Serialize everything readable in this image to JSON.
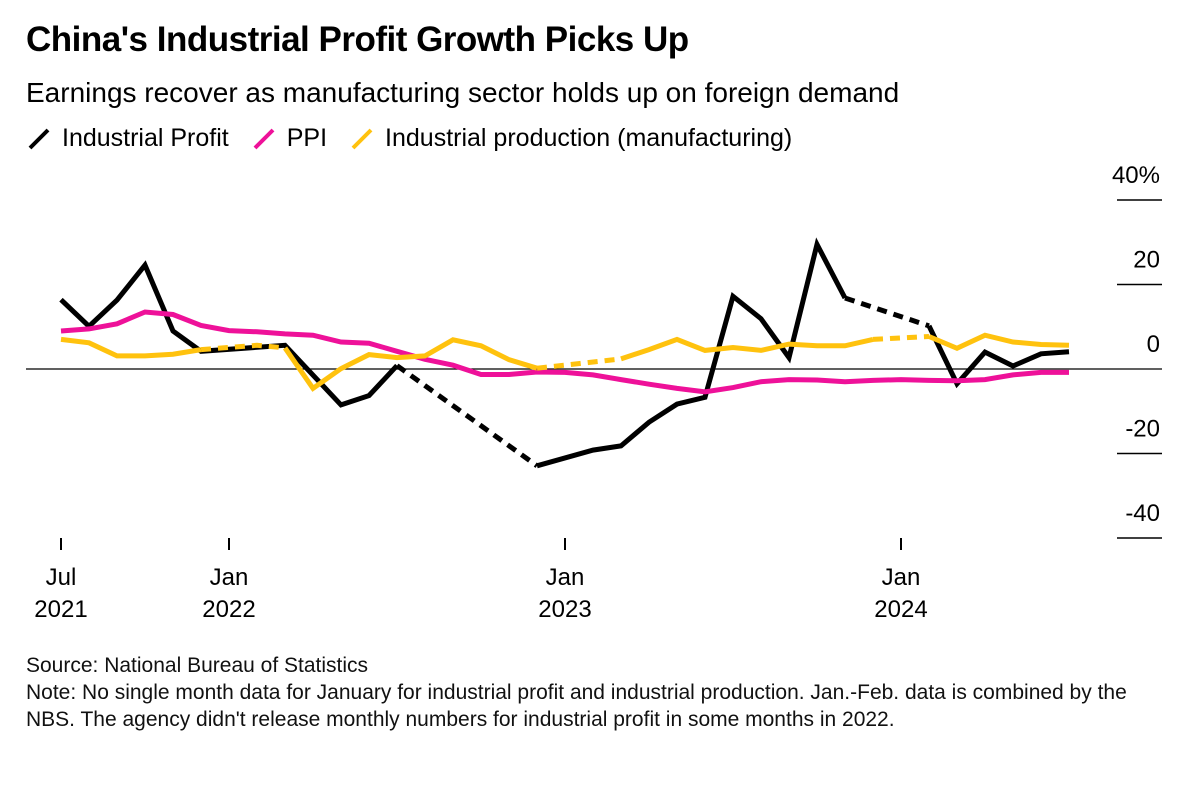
{
  "header": {
    "title": "China's Industrial Profit Growth Picks Up",
    "subtitle": "Earnings recover as manufacturing sector holds up on foreign demand"
  },
  "footer": {
    "source": "Source: National Bureau of Statistics",
    "note": "Note: No single month data for January for industrial profit and industrial production. Jan.-Feb. data is combined by the NBS. The agency didn't release monthly numbers for industrial profit in some months in 2022."
  },
  "chart_data": {
    "type": "line",
    "title": "China's Industrial Profit Growth Picks Up",
    "subtitle": "Earnings recover as manufacturing sector holds up on foreign demand",
    "ylim": [
      -40,
      40
    ],
    "y_ticks": [
      {
        "value": 40,
        "label": "40%"
      },
      {
        "value": 20,
        "label": "20"
      },
      {
        "value": 0,
        "label": "0"
      },
      {
        "value": -20,
        "label": "-20"
      },
      {
        "value": -40,
        "label": "-40"
      }
    ],
    "x_range": [
      "2021-07",
      "2024-08"
    ],
    "x_ticks": [
      {
        "date": "2021-07",
        "line1": "Jul",
        "line2": "2021"
      },
      {
        "date": "2022-01",
        "line1": "Jan",
        "line2": "2022"
      },
      {
        "date": "2023-01",
        "line1": "Jan",
        "line2": "2023"
      },
      {
        "date": "2024-01",
        "line1": "Jan",
        "line2": "2024"
      }
    ],
    "grid": false,
    "legend_position": "top-left",
    "series": [
      {
        "name": "Industrial Profit",
        "color": "#000000",
        "dashed_ranges": [
          [
            "2022-01",
            "2022-03"
          ],
          [
            "2022-07",
            "2022-12"
          ],
          [
            "2023-11",
            "2024-02"
          ]
        ],
        "points": [
          {
            "date": "2021-07",
            "value": 16.4
          },
          {
            "date": "2021-08",
            "value": 10.1
          },
          {
            "date": "2021-09",
            "value": 16.3
          },
          {
            "date": "2021-10",
            "value": 24.6
          },
          {
            "date": "2021-11",
            "value": 9.0
          },
          {
            "date": "2021-12",
            "value": 4.2
          },
          {
            "date": "2022-03",
            "value": 5.6
          },
          {
            "date": "2022-05",
            "value": -8.5
          },
          {
            "date": "2022-06",
            "value": -6.3
          },
          {
            "date": "2022-07",
            "value": 0.8
          },
          {
            "date": "2022-12",
            "value": -22.9
          },
          {
            "date": "2023-02",
            "value": -19.2
          },
          {
            "date": "2023-03",
            "value": -18.2
          },
          {
            "date": "2023-04",
            "value": -12.6
          },
          {
            "date": "2023-05",
            "value": -8.3
          },
          {
            "date": "2023-06",
            "value": -6.7
          },
          {
            "date": "2023-07",
            "value": 17.2
          },
          {
            "date": "2023-08",
            "value": 11.9
          },
          {
            "date": "2023-09",
            "value": 2.7
          },
          {
            "date": "2023-10",
            "value": 29.5
          },
          {
            "date": "2023-11",
            "value": 16.8
          },
          {
            "date": "2024-02",
            "value": 10.2
          },
          {
            "date": "2024-03",
            "value": -3.5
          },
          {
            "date": "2024-04",
            "value": 4.0
          },
          {
            "date": "2024-05",
            "value": 0.7
          },
          {
            "date": "2024-06",
            "value": 3.6
          },
          {
            "date": "2024-07",
            "value": 4.1
          }
        ]
      },
      {
        "name": "PPI",
        "color": "#ee1199",
        "dashed_ranges": [],
        "points": [
          {
            "date": "2021-07",
            "value": 9.0
          },
          {
            "date": "2021-08",
            "value": 9.5
          },
          {
            "date": "2021-09",
            "value": 10.7
          },
          {
            "date": "2021-10",
            "value": 13.5
          },
          {
            "date": "2021-11",
            "value": 12.9
          },
          {
            "date": "2021-12",
            "value": 10.3
          },
          {
            "date": "2022-01",
            "value": 9.1
          },
          {
            "date": "2022-02",
            "value": 8.8
          },
          {
            "date": "2022-03",
            "value": 8.3
          },
          {
            "date": "2022-04",
            "value": 8.0
          },
          {
            "date": "2022-05",
            "value": 6.4
          },
          {
            "date": "2022-06",
            "value": 6.1
          },
          {
            "date": "2022-07",
            "value": 4.2
          },
          {
            "date": "2022-08",
            "value": 2.3
          },
          {
            "date": "2022-09",
            "value": 0.9
          },
          {
            "date": "2022-10",
            "value": -1.3
          },
          {
            "date": "2022-11",
            "value": -1.3
          },
          {
            "date": "2022-12",
            "value": -0.7
          },
          {
            "date": "2023-01",
            "value": -0.8
          },
          {
            "date": "2023-02",
            "value": -1.4
          },
          {
            "date": "2023-03",
            "value": -2.5
          },
          {
            "date": "2023-04",
            "value": -3.6
          },
          {
            "date": "2023-05",
            "value": -4.6
          },
          {
            "date": "2023-06",
            "value": -5.4
          },
          {
            "date": "2023-07",
            "value": -4.4
          },
          {
            "date": "2023-08",
            "value": -3.0
          },
          {
            "date": "2023-09",
            "value": -2.5
          },
          {
            "date": "2023-10",
            "value": -2.6
          },
          {
            "date": "2023-11",
            "value": -3.0
          },
          {
            "date": "2023-12",
            "value": -2.7
          },
          {
            "date": "2024-01",
            "value": -2.5
          },
          {
            "date": "2024-02",
            "value": -2.7
          },
          {
            "date": "2024-03",
            "value": -2.8
          },
          {
            "date": "2024-04",
            "value": -2.5
          },
          {
            "date": "2024-05",
            "value": -1.4
          },
          {
            "date": "2024-06",
            "value": -0.8
          },
          {
            "date": "2024-07",
            "value": -0.8
          }
        ]
      },
      {
        "name": "Industrial production (manufacturing)",
        "color": "#ffc20e",
        "dashed_ranges": [
          [
            "2021-12",
            "2022-03"
          ],
          [
            "2022-12",
            "2023-03"
          ],
          [
            "2023-12",
            "2024-02"
          ]
        ],
        "points": [
          {
            "date": "2021-07",
            "value": 7.0
          },
          {
            "date": "2021-08",
            "value": 6.2
          },
          {
            "date": "2021-09",
            "value": 3.1
          },
          {
            "date": "2021-10",
            "value": 3.1
          },
          {
            "date": "2021-11",
            "value": 3.5
          },
          {
            "date": "2021-12",
            "value": 4.6
          },
          {
            "date": "2022-02",
            "value": 5.6
          },
          {
            "date": "2022-03",
            "value": 5.0
          },
          {
            "date": "2022-04",
            "value": -4.6
          },
          {
            "date": "2022-05",
            "value": 0.1
          },
          {
            "date": "2022-06",
            "value": 3.4
          },
          {
            "date": "2022-07",
            "value": 2.7
          },
          {
            "date": "2022-08",
            "value": 3.1
          },
          {
            "date": "2022-09",
            "value": 6.9
          },
          {
            "date": "2022-10",
            "value": 5.5
          },
          {
            "date": "2022-11",
            "value": 2.2
          },
          {
            "date": "2022-12",
            "value": 0.2
          },
          {
            "date": "2023-03",
            "value": 2.4
          },
          {
            "date": "2023-04",
            "value": 4.6
          },
          {
            "date": "2023-05",
            "value": 7.0
          },
          {
            "date": "2023-06",
            "value": 4.4
          },
          {
            "date": "2023-07",
            "value": 5.1
          },
          {
            "date": "2023-08",
            "value": 4.4
          },
          {
            "date": "2023-09",
            "value": 5.9
          },
          {
            "date": "2023-10",
            "value": 5.5
          },
          {
            "date": "2023-11",
            "value": 5.5
          },
          {
            "date": "2023-12",
            "value": 7.0
          },
          {
            "date": "2024-02",
            "value": 7.7
          },
          {
            "date": "2024-03",
            "value": 4.9
          },
          {
            "date": "2024-04",
            "value": 8.0
          },
          {
            "date": "2024-05",
            "value": 6.4
          },
          {
            "date": "2024-06",
            "value": 5.8
          },
          {
            "date": "2024-07",
            "value": 5.6
          }
        ]
      }
    ]
  }
}
